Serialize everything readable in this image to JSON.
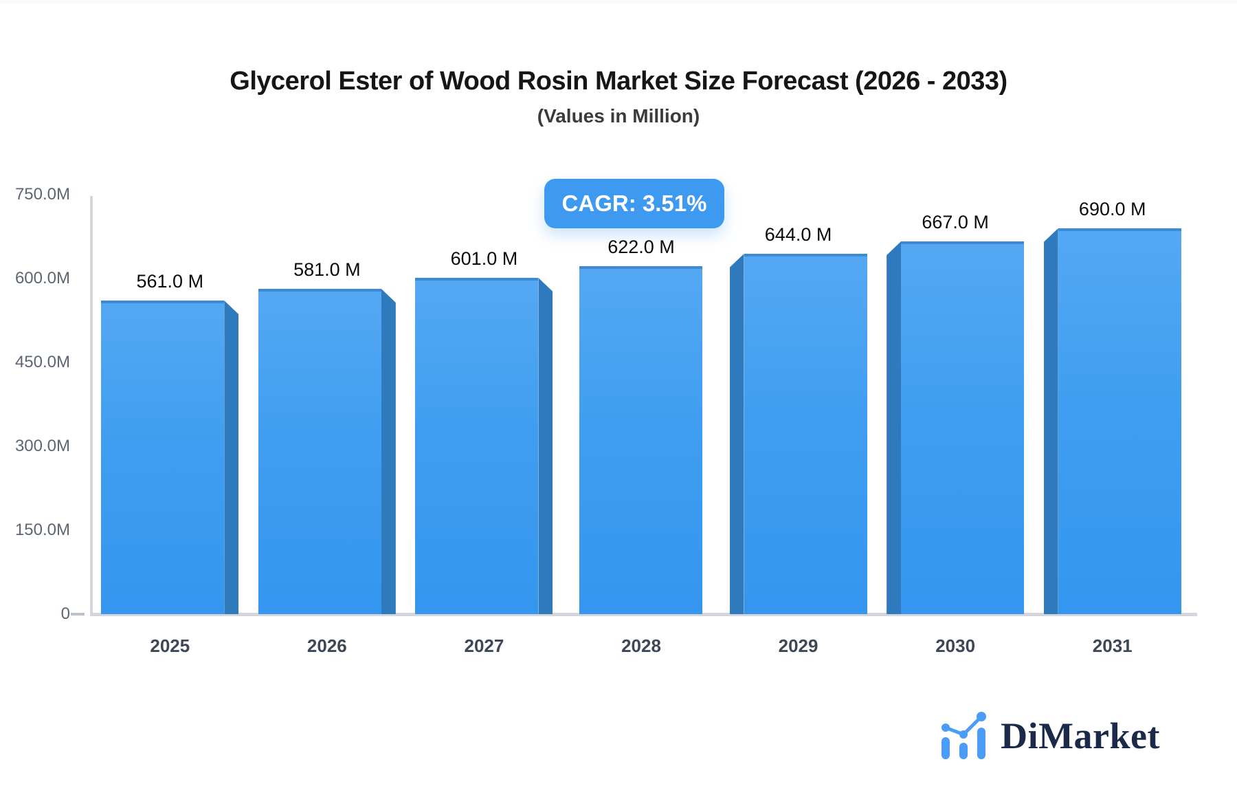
{
  "header": {
    "title": "Glycerol Ester of Wood Rosin Market Size Forecast (2026 - 2033)",
    "subtitle": "(Values in Million)"
  },
  "badge": {
    "label": "CAGR: 3.51%"
  },
  "chart_data": {
    "type": "bar",
    "title": "Glycerol Ester of Wood Rosin Market Size Forecast (2026 - 2033)",
    "subtitle": "(Values in Million)",
    "categories": [
      "2025",
      "2026",
      "2027",
      "2028",
      "2029",
      "2030",
      "2031"
    ],
    "values": [
      561,
      581,
      601,
      622,
      644,
      667,
      690
    ],
    "value_labels": [
      "561.0 M",
      "581.0 M",
      "601.0 M",
      "622.0 M",
      "644.0 M",
      "667.0 M",
      "690.0 M"
    ],
    "unit": "Million",
    "xlabel": "",
    "ylabel": "",
    "ylim": [
      0,
      750
    ],
    "ytick_labels": [
      "750.0M",
      "600.0M",
      "450.0M",
      "300.0M",
      "150.0M",
      "0"
    ],
    "grid": false,
    "legend": false,
    "annotations": [
      "CAGR: 3.51%"
    ]
  },
  "colors": {
    "title": "#161616",
    "subtitle": "#3b3b3b",
    "badge": "#3e99f0",
    "face-top": "#55a8f3",
    "face-bot": "#3496ef",
    "side": "#2e7abc",
    "edge": "#3e8ad2",
    "axis": "#d3d7dc",
    "ytick": "#5c6673",
    "xtick": "#3e4757",
    "value": "#0b0b0b",
    "logo-navy": "#1b2a49",
    "logo-blue": "#4a9cf6"
  },
  "logo": {
    "text": "DiMarket",
    "icon": "bar-chart-trend-icon"
  }
}
